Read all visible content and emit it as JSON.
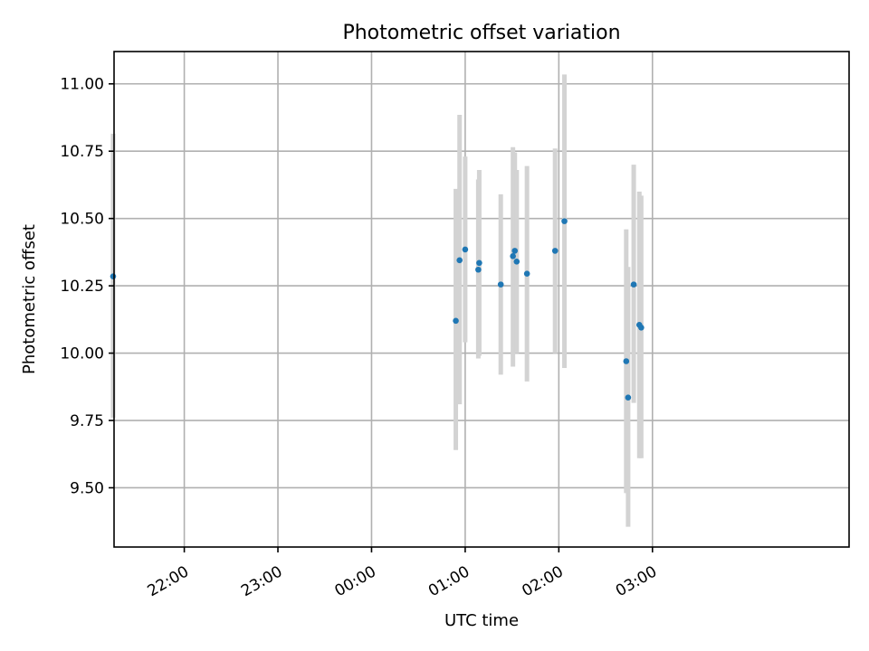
{
  "chart_data": {
    "type": "scatter",
    "title": "Photometric offset variation",
    "xlabel": "UTC time",
    "ylabel": "Photometric offset",
    "x_unit": "UTC time (hours; values >= 24 fall on the next day)",
    "xlim": [
      21.25,
      29.1
    ],
    "ylim": [
      9.28,
      11.12
    ],
    "x_ticks": [
      {
        "value": 22,
        "label": "22:00"
      },
      {
        "value": 23,
        "label": "23:00"
      },
      {
        "value": 24,
        "label": "00:00"
      },
      {
        "value": 25,
        "label": "01:00"
      },
      {
        "value": 26,
        "label": "02:00"
      },
      {
        "value": 27,
        "label": "03:00"
      }
    ],
    "y_ticks": [
      {
        "value": 9.5,
        "label": "9.50"
      },
      {
        "value": 9.75,
        "label": "9.75"
      },
      {
        "value": 10.0,
        "label": "10.00"
      },
      {
        "value": 10.25,
        "label": "10.25"
      },
      {
        "value": 10.5,
        "label": "10.50"
      },
      {
        "value": 10.75,
        "label": "10.75"
      },
      {
        "value": 11.0,
        "label": "11.00"
      }
    ],
    "grid": true,
    "colors": {
      "point": "#1f77b4",
      "errorbar": "#d3d3d3"
    },
    "points": [
      {
        "x": 21.24,
        "y": 10.285,
        "ylo": 9.76,
        "yhi": 10.815
      },
      {
        "x": 24.9,
        "y": 10.12,
        "ylo": 9.64,
        "yhi": 10.61
      },
      {
        "x": 24.94,
        "y": 10.345,
        "ylo": 9.81,
        "yhi": 10.885
      },
      {
        "x": 25.0,
        "y": 10.385,
        "ylo": 10.04,
        "yhi": 10.73
      },
      {
        "x": 25.14,
        "y": 10.31,
        "ylo": 9.98,
        "yhi": 10.645
      },
      {
        "x": 25.15,
        "y": 10.335,
        "ylo": 9.99,
        "yhi": 10.68
      },
      {
        "x": 25.38,
        "y": 10.255,
        "ylo": 9.92,
        "yhi": 10.59
      },
      {
        "x": 25.51,
        "y": 10.36,
        "ylo": 9.95,
        "yhi": 10.765
      },
      {
        "x": 25.53,
        "y": 10.38,
        "ylo": 10.02,
        "yhi": 10.745
      },
      {
        "x": 25.55,
        "y": 10.34,
        "ylo": 10.0,
        "yhi": 10.68
      },
      {
        "x": 25.66,
        "y": 10.295,
        "ylo": 9.895,
        "yhi": 10.695
      },
      {
        "x": 25.96,
        "y": 10.38,
        "ylo": 10.0,
        "yhi": 10.76
      },
      {
        "x": 26.06,
        "y": 10.49,
        "ylo": 9.945,
        "yhi": 11.035
      },
      {
        "x": 26.72,
        "y": 9.97,
        "ylo": 9.48,
        "yhi": 10.46
      },
      {
        "x": 26.74,
        "y": 9.835,
        "ylo": 9.355,
        "yhi": 10.32
      },
      {
        "x": 26.8,
        "y": 10.255,
        "ylo": 9.815,
        "yhi": 10.7
      },
      {
        "x": 26.86,
        "y": 10.105,
        "ylo": 9.61,
        "yhi": 10.6
      },
      {
        "x": 26.88,
        "y": 10.095,
        "ylo": 9.61,
        "yhi": 10.585
      }
    ]
  }
}
